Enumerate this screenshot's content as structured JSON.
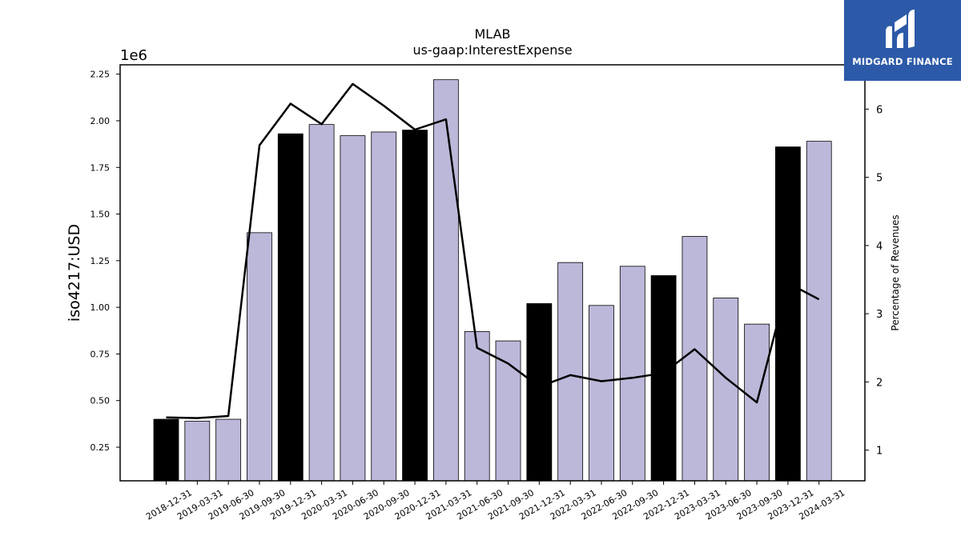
{
  "chart_data": {
    "type": "bar",
    "title": "MLAB",
    "subtitle": "us-gaap:InterestExpense",
    "ylabel": "iso4217:USD",
    "y_multiplier": "1e6",
    "ylabel_right": "Percentage of Revenues",
    "ylim": [
      0.07,
      2.3
    ],
    "ylim_right": [
      0.55,
      6.65
    ],
    "yticks": [
      "0.25",
      "0.50",
      "0.75",
      "1.00",
      "1.25",
      "1.50",
      "1.75",
      "2.00",
      "2.25"
    ],
    "yticks_right": [
      "1",
      "2",
      "3",
      "4",
      "5",
      "6"
    ],
    "grid": false,
    "categories": [
      "2018-12-31",
      "2019-03-31",
      "2019-06-30",
      "2019-09-30",
      "2019-12-31",
      "2020-03-31",
      "2020-06-30",
      "2020-09-30",
      "2020-12-31",
      "2021-03-31",
      "2021-06-30",
      "2021-09-30",
      "2021-12-31",
      "2022-03-31",
      "2022-06-30",
      "2022-09-30",
      "2022-12-31",
      "2023-03-31",
      "2023-06-30",
      "2023-09-30",
      "2023-12-31",
      "2024-03-31"
    ],
    "series": [
      {
        "kind": "bar",
        "values": [
          0.4,
          0.39,
          0.4,
          1.4,
          1.93,
          1.98,
          1.92,
          1.94,
          1.95,
          2.22,
          0.87,
          0.82,
          1.02,
          1.24,
          1.01,
          1.22,
          1.17,
          1.38,
          1.05,
          0.91,
          1.86,
          1.89
        ],
        "highlight": [
          true,
          false,
          false,
          false,
          true,
          false,
          false,
          false,
          true,
          false,
          false,
          false,
          true,
          false,
          false,
          false,
          true,
          false,
          false,
          false,
          true,
          false
        ]
      },
      {
        "kind": "line",
        "axis": "right",
        "values": [
          1.48,
          1.47,
          1.5,
          5.47,
          6.08,
          5.78,
          6.37,
          6.05,
          5.7,
          5.85,
          2.5,
          2.27,
          1.93,
          2.1,
          2.01,
          2.06,
          2.13,
          2.48,
          2.06,
          1.7,
          3.45,
          3.21
        ]
      }
    ],
    "colors": {
      "bar": "#bcb8d9",
      "bar_highlight": "#000000",
      "line": "#000000",
      "edge": "#000000"
    }
  },
  "logo": {
    "text": "MIDGARD FINANCE",
    "background": "#2c5aa8"
  }
}
